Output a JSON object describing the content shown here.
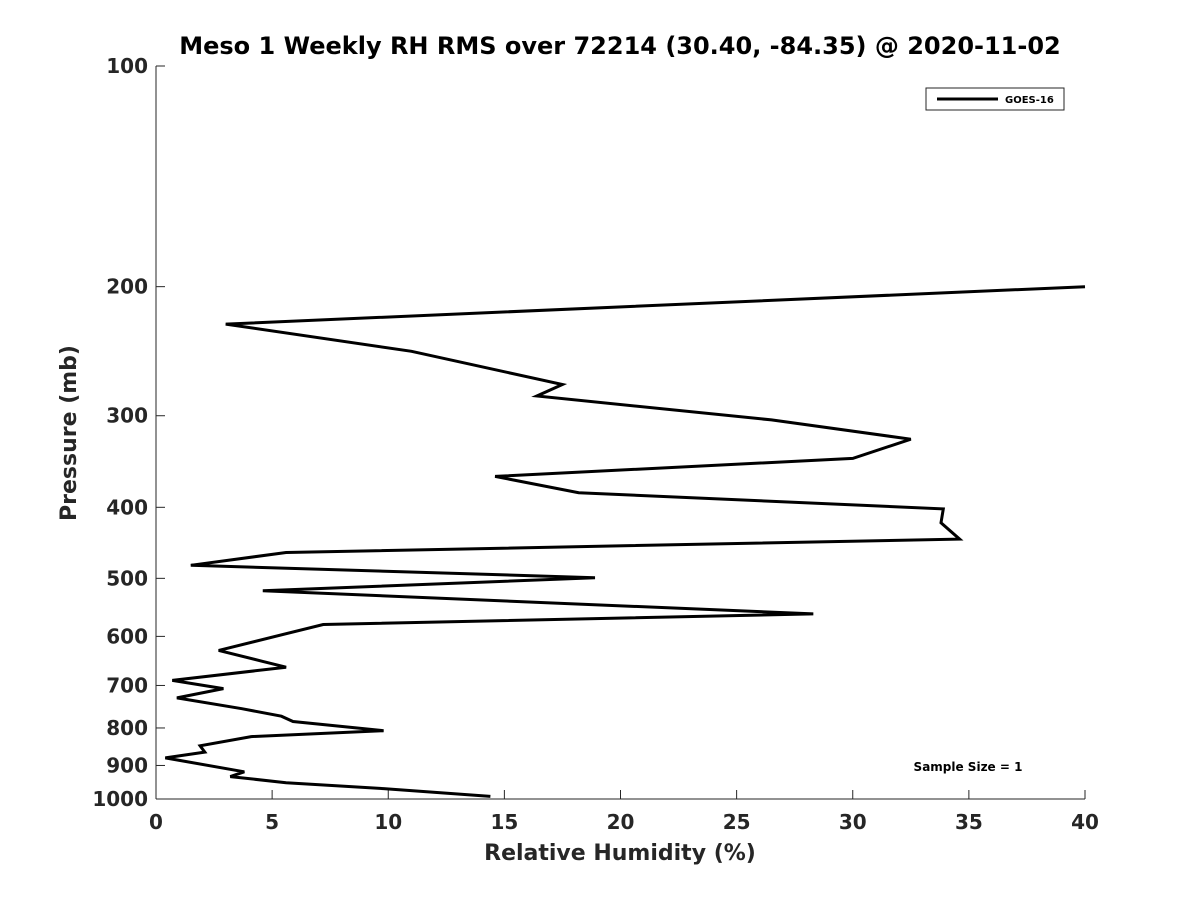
{
  "chart_data": {
    "type": "line",
    "title": "Meso 1 Weekly RH RMS over 72214 (30.40, -84.35) @ 2020-11-02",
    "xlabel": "Relative Humidity (%)",
    "ylabel": "Pressure (mb)",
    "xlim": [
      0,
      40
    ],
    "ylim": [
      100,
      1000
    ],
    "y_scale": "log",
    "y_reversed": true,
    "x_ticks": [
      0,
      5,
      10,
      15,
      20,
      25,
      30,
      35,
      40
    ],
    "y_ticks": [
      100,
      200,
      300,
      400,
      500,
      600,
      700,
      800,
      900,
      1000
    ],
    "grid": false,
    "legend_position": "top-right",
    "annotation": "Sample Size = 1",
    "series": [
      {
        "name": "GOES-16",
        "color": "#000000",
        "points": [
          {
            "x": 40.0,
            "y": 200
          },
          {
            "x": 3.0,
            "y": 225
          },
          {
            "x": 11.0,
            "y": 245
          },
          {
            "x": 17.5,
            "y": 272
          },
          {
            "x": 16.4,
            "y": 282
          },
          {
            "x": 26.5,
            "y": 304
          },
          {
            "x": 32.5,
            "y": 323
          },
          {
            "x": 30.0,
            "y": 343
          },
          {
            "x": 14.6,
            "y": 363
          },
          {
            "x": 18.2,
            "y": 382
          },
          {
            "x": 33.9,
            "y": 402
          },
          {
            "x": 33.8,
            "y": 420
          },
          {
            "x": 34.6,
            "y": 442
          },
          {
            "x": 5.6,
            "y": 461
          },
          {
            "x": 1.5,
            "y": 480
          },
          {
            "x": 18.9,
            "y": 499
          },
          {
            "x": 4.6,
            "y": 520
          },
          {
            "x": 28.3,
            "y": 559
          },
          {
            "x": 7.2,
            "y": 578
          },
          {
            "x": 2.7,
            "y": 627
          },
          {
            "x": 4.6,
            "y": 649
          },
          {
            "x": 5.6,
            "y": 661
          },
          {
            "x": 0.7,
            "y": 689
          },
          {
            "x": 2.9,
            "y": 707
          },
          {
            "x": 0.9,
            "y": 728
          },
          {
            "x": 3.7,
            "y": 753
          },
          {
            "x": 5.4,
            "y": 771
          },
          {
            "x": 5.9,
            "y": 784
          },
          {
            "x": 9.8,
            "y": 807
          },
          {
            "x": 4.1,
            "y": 822
          },
          {
            "x": 1.9,
            "y": 846
          },
          {
            "x": 2.1,
            "y": 863
          },
          {
            "x": 0.4,
            "y": 879
          },
          {
            "x": 3.8,
            "y": 918
          },
          {
            "x": 3.2,
            "y": 932
          },
          {
            "x": 5.6,
            "y": 950
          },
          {
            "x": 9.8,
            "y": 968
          },
          {
            "x": 14.4,
            "y": 992
          }
        ]
      }
    ]
  }
}
